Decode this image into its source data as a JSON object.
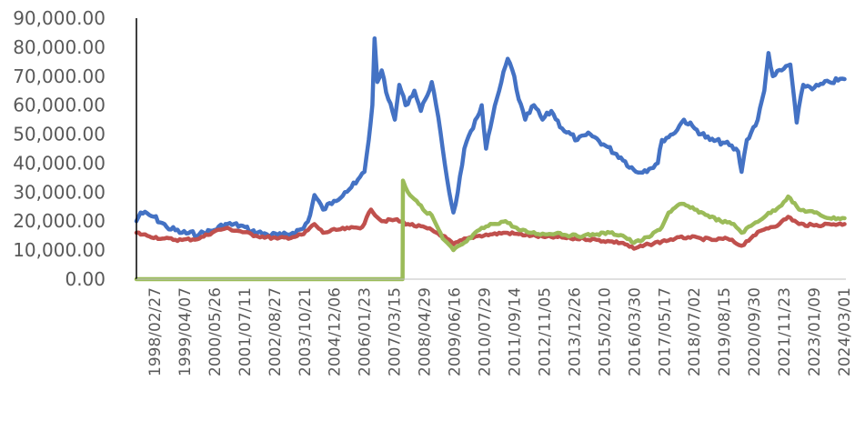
{
  "chart_data": {
    "type": "line",
    "title": "",
    "xlabel": "",
    "ylabel": "",
    "ylim": [
      0,
      90000
    ],
    "yticks": [
      "0.00",
      "10,000.00",
      "20,000.00",
      "30,000.00",
      "40,000.00",
      "50,000.00",
      "60,000.00",
      "70,000.00",
      "80,000.00",
      "90,000.00"
    ],
    "xticks": [
      "1998/02/27",
      "1999/04/07",
      "2000/05/26",
      "2001/07/11",
      "2002/08/27",
      "2003/10/21",
      "2004/12/06",
      "2006/01/23",
      "2007/03/15",
      "2008/04/29",
      "2009/06/16",
      "2010/07/29",
      "2011/09/14",
      "2012/11/05",
      "2013/12/26",
      "2015/02/10",
      "2016/03/30",
      "2017/05/17",
      "2018/07/02",
      "2019/08/15",
      "2020/09/30",
      "2021/11/23",
      "2023/01/09",
      "2024/03/01"
    ],
    "grid": false,
    "legend": "none",
    "series": [
      {
        "color": "#4472C4",
        "points": [
          [
            "1997-01-02",
            20000
          ],
          [
            "1997-03-01",
            23000
          ],
          [
            "1997-09-01",
            21500
          ],
          [
            "1998-03-01",
            18000
          ],
          [
            "1998-10-01",
            16000
          ],
          [
            "1999-06-01",
            15500
          ],
          [
            "2000-01-01",
            17000
          ],
          [
            "2000-06-01",
            19000
          ],
          [
            "2001-01-01",
            18500
          ],
          [
            "2001-06-01",
            16500
          ],
          [
            "2002-01-01",
            15500
          ],
          [
            "2002-08-01",
            15000
          ],
          [
            "2003-01-01",
            16000
          ],
          [
            "2003-06-01",
            17500
          ],
          [
            "2003-09-01",
            22000
          ],
          [
            "2003-11-01",
            29000
          ],
          [
            "2004-03-01",
            24000
          ],
          [
            "2004-08-01",
            27000
          ],
          [
            "2005-01-01",
            30000
          ],
          [
            "2005-06-01",
            33000
          ],
          [
            "2005-10-01",
            37000
          ],
          [
            "2005-12-01",
            48000
          ],
          [
            "2006-01-20",
            60000
          ],
          [
            "2006-02-20",
            83000
          ],
          [
            "2006-04-01",
            68000
          ],
          [
            "2006-06-01",
            72000
          ],
          [
            "2006-09-01",
            62000
          ],
          [
            "2006-12-01",
            55000
          ],
          [
            "2007-02-01",
            67000
          ],
          [
            "2007-05-01",
            60000
          ],
          [
            "2007-09-01",
            65000
          ],
          [
            "2007-12-01",
            58000
          ],
          [
            "2008-02-01",
            62000
          ],
          [
            "2008-05-01",
            68000
          ],
          [
            "2008-07-01",
            60000
          ],
          [
            "2008-10-01",
            45000
          ],
          [
            "2009-01-01",
            30000
          ],
          [
            "2009-03-01",
            23000
          ],
          [
            "2009-05-01",
            30000
          ],
          [
            "2009-08-01",
            45000
          ],
          [
            "2009-12-01",
            52000
          ],
          [
            "2010-04-01",
            60000
          ],
          [
            "2010-06-01",
            45000
          ],
          [
            "2010-09-01",
            56000
          ],
          [
            "2011-01-01",
            68000
          ],
          [
            "2011-04-01",
            76000
          ],
          [
            "2011-07-01",
            70000
          ],
          [
            "2011-09-01",
            62000
          ],
          [
            "2011-12-01",
            55000
          ],
          [
            "2012-04-01",
            60000
          ],
          [
            "2012-08-01",
            55000
          ],
          [
            "2012-12-01",
            58000
          ],
          [
            "2013-05-01",
            52000
          ],
          [
            "2013-12-01",
            48000
          ],
          [
            "2014-06-01",
            50000
          ],
          [
            "2015-01-01",
            46000
          ],
          [
            "2015-08-01",
            42000
          ],
          [
            "2016-03-01",
            37000
          ],
          [
            "2016-09-01",
            38000
          ],
          [
            "2017-01-01",
            40000
          ],
          [
            "2017-03-01",
            48000
          ],
          [
            "2017-08-01",
            50000
          ],
          [
            "2018-01-01",
            55000
          ],
          [
            "2018-06-01",
            52000
          ],
          [
            "2019-01-01",
            48000
          ],
          [
            "2019-08-01",
            47000
          ],
          [
            "2020-02-01",
            44000
          ],
          [
            "2020-03-20",
            37000
          ],
          [
            "2020-06-01",
            48000
          ],
          [
            "2020-11-01",
            55000
          ],
          [
            "2021-02-01",
            65000
          ],
          [
            "2021-04-01",
            78000
          ],
          [
            "2021-06-01",
            70000
          ],
          [
            "2021-10-01",
            72000
          ],
          [
            "2022-02-01",
            74000
          ],
          [
            "2022-05-01",
            54000
          ],
          [
            "2022-08-01",
            67000
          ],
          [
            "2023-01-01",
            66000
          ],
          [
            "2023-08-01",
            68000
          ],
          [
            "2024-03-01",
            69000
          ]
        ]
      },
      {
        "color": "#C0504D",
        "points": [
          [
            "1997-01-02",
            16000
          ],
          [
            "1997-06-01",
            15000
          ],
          [
            "1998-01-01",
            14000
          ],
          [
            "1998-10-01",
            13500
          ],
          [
            "1999-06-01",
            14000
          ],
          [
            "2000-01-01",
            16500
          ],
          [
            "2000-06-01",
            17500
          ],
          [
            "2001-01-01",
            16500
          ],
          [
            "2001-08-01",
            15000
          ],
          [
            "2002-06-01",
            14000
          ],
          [
            "2003-01-01",
            14500
          ],
          [
            "2003-06-01",
            15500
          ],
          [
            "2003-11-01",
            19000
          ],
          [
            "2004-03-01",
            16000
          ],
          [
            "2004-09-01",
            17000
          ],
          [
            "2005-03-01",
            17500
          ],
          [
            "2005-09-01",
            18000
          ],
          [
            "2006-01-01",
            24000
          ],
          [
            "2006-06-01",
            20000
          ],
          [
            "2006-12-01",
            20500
          ],
          [
            "2007-06-01",
            19000
          ],
          [
            "2008-03-01",
            17500
          ],
          [
            "2008-10-01",
            15000
          ],
          [
            "2009-03-01",
            12000
          ],
          [
            "2009-09-01",
            14000
          ],
          [
            "2010-03-01",
            15000
          ],
          [
            "2010-09-01",
            15500
          ],
          [
            "2011-03-01",
            16000
          ],
          [
            "2011-09-01",
            15500
          ],
          [
            "2012-03-01",
            15000
          ],
          [
            "2012-09-01",
            14500
          ],
          [
            "2013-03-01",
            14500
          ],
          [
            "2013-09-01",
            14000
          ],
          [
            "2014-03-01",
            14000
          ],
          [
            "2014-09-01",
            13500
          ],
          [
            "2015-03-01",
            13000
          ],
          [
            "2015-09-01",
            12500
          ],
          [
            "2016-02-01",
            10500
          ],
          [
            "2016-09-01",
            12000
          ],
          [
            "2017-03-01",
            13000
          ],
          [
            "2017-09-01",
            14000
          ],
          [
            "2018-03-01",
            14500
          ],
          [
            "2018-09-01",
            14000
          ],
          [
            "2019-03-01",
            13500
          ],
          [
            "2019-09-01",
            14000
          ],
          [
            "2020-03-20",
            11500
          ],
          [
            "2020-09-01",
            15000
          ],
          [
            "2021-03-01",
            17500
          ],
          [
            "2021-09-01",
            19000
          ],
          [
            "2022-01-01",
            21500
          ],
          [
            "2022-06-01",
            19000
          ],
          [
            "2023-01-01",
            18500
          ],
          [
            "2023-08-01",
            19000
          ],
          [
            "2024-03-01",
            19000
          ]
        ]
      },
      {
        "color": "#9BBB59",
        "points": [
          [
            "1997-01-02",
            0
          ],
          [
            "2007-03-20",
            0
          ],
          [
            "2007-03-25",
            34000
          ],
          [
            "2007-06-01",
            30000
          ],
          [
            "2007-10-01",
            27000
          ],
          [
            "2008-01-01",
            24000
          ],
          [
            "2008-05-01",
            22000
          ],
          [
            "2008-10-01",
            14000
          ],
          [
            "2009-03-01",
            10000
          ],
          [
            "2009-09-01",
            13000
          ],
          [
            "2010-03-01",
            17000
          ],
          [
            "2010-09-01",
            19000
          ],
          [
            "2011-03-01",
            20000
          ],
          [
            "2011-09-01",
            17000
          ],
          [
            "2012-03-01",
            16000
          ],
          [
            "2012-09-01",
            15500
          ],
          [
            "2013-03-01",
            16000
          ],
          [
            "2013-09-01",
            15000
          ],
          [
            "2014-03-01",
            15000
          ],
          [
            "2014-09-01",
            15500
          ],
          [
            "2015-03-01",
            16000
          ],
          [
            "2015-09-01",
            15000
          ],
          [
            "2016-02-01",
            12500
          ],
          [
            "2016-09-01",
            14500
          ],
          [
            "2017-03-01",
            18000
          ],
          [
            "2017-06-01",
            23000
          ],
          [
            "2017-12-01",
            26000
          ],
          [
            "2018-06-01",
            24000
          ],
          [
            "2018-12-01",
            22000
          ],
          [
            "2019-06-01",
            20000
          ],
          [
            "2019-12-01",
            19000
          ],
          [
            "2020-03-20",
            16000
          ],
          [
            "2020-09-01",
            19000
          ],
          [
            "2021-03-01",
            22000
          ],
          [
            "2021-09-01",
            25000
          ],
          [
            "2022-01-01",
            28500
          ],
          [
            "2022-06-01",
            24000
          ],
          [
            "2023-01-01",
            23000
          ],
          [
            "2023-08-01",
            21000
          ],
          [
            "2024-03-01",
            21000
          ]
        ]
      }
    ]
  }
}
